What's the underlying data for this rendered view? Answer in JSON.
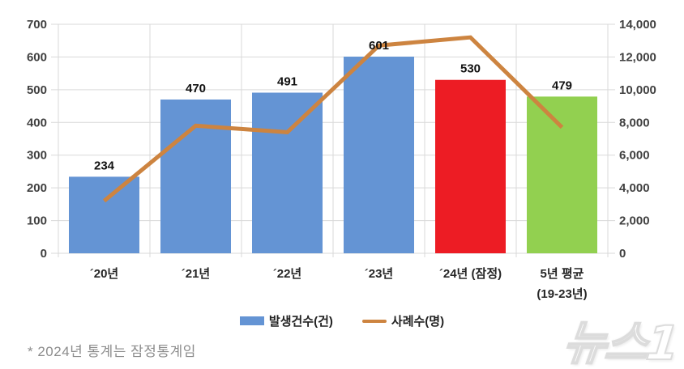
{
  "chart_data": {
    "type": "bar",
    "subtype": "combo-bar-line",
    "categories": [
      "´20년",
      "´21년",
      "´22년",
      "´23년",
      "´24년 (잠정)",
      "5년 평균"
    ],
    "category_sublabels": [
      "",
      "",
      "",
      "",
      "",
      "(19-23년)"
    ],
    "series": [
      {
        "name": "발생건수(건)",
        "type": "bar",
        "axis": "left",
        "values": [
          234,
          470,
          491,
          601,
          530,
          479
        ],
        "colors": [
          "#6494D4",
          "#6494D4",
          "#6494D4",
          "#6494D4",
          "#ED1C24",
          "#92D050"
        ]
      },
      {
        "name": "사례수(명)",
        "type": "line",
        "axis": "right",
        "values": [
          3200,
          7800,
          7400,
          12700,
          13200,
          7700
        ],
        "color": "#CD8440"
      }
    ],
    "left_axis": {
      "min": 0,
      "max": 700,
      "step": 100
    },
    "right_axis": {
      "min": 0,
      "max": 14000,
      "step": 2000
    },
    "grid": true,
    "gridline_color": "#D9D9D9",
    "tick_label_color": "#404040",
    "legend_position": "bottom"
  },
  "legend": {
    "items": [
      {
        "label": "발생건수(건)",
        "swatch": "bar",
        "color": "#6494D4"
      },
      {
        "label": "사례수(명)",
        "swatch": "line",
        "color": "#CD8440"
      }
    ]
  },
  "footnote": {
    "text": "* 2024년 통계는 잠정통계임"
  },
  "watermark": {
    "text": "뉴스1"
  }
}
